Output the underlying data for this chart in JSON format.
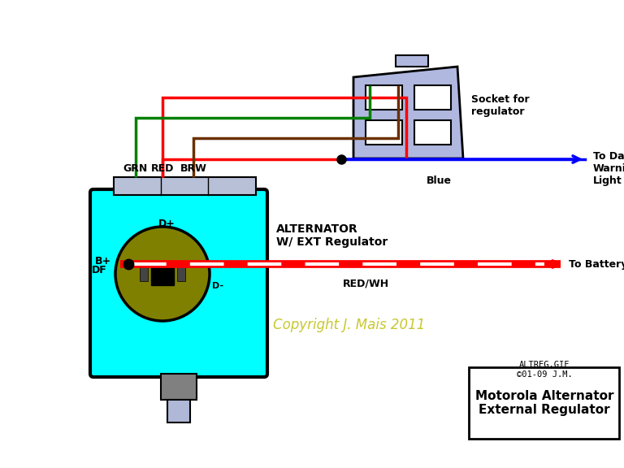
{
  "bg_color": "#ffffff",
  "alt_body_color": "#00ffff",
  "alt_body_border": "#000000",
  "title": "Motorola Alternator\nExternal Regulator",
  "copyright": "Copyright J. Mais 2011",
  "altreg_label": "ALTREG.GIF\n©01-09 J.M.",
  "label_alternator": "ALTERNATOR\nW/ EXT Regulator",
  "label_socket": "Socket for\nregulator",
  "label_dash": "To Dash\nWarning\nLight",
  "label_battery": "To Battery",
  "label_redwh": "RED/WH",
  "label_blue": "Blue",
  "label_grn": "GRN",
  "label_red": "RED",
  "label_brw": "BRW",
  "label_dplus": "D+",
  "label_df": "DF",
  "label_dminus": "D-",
  "label_bplus": "B+"
}
